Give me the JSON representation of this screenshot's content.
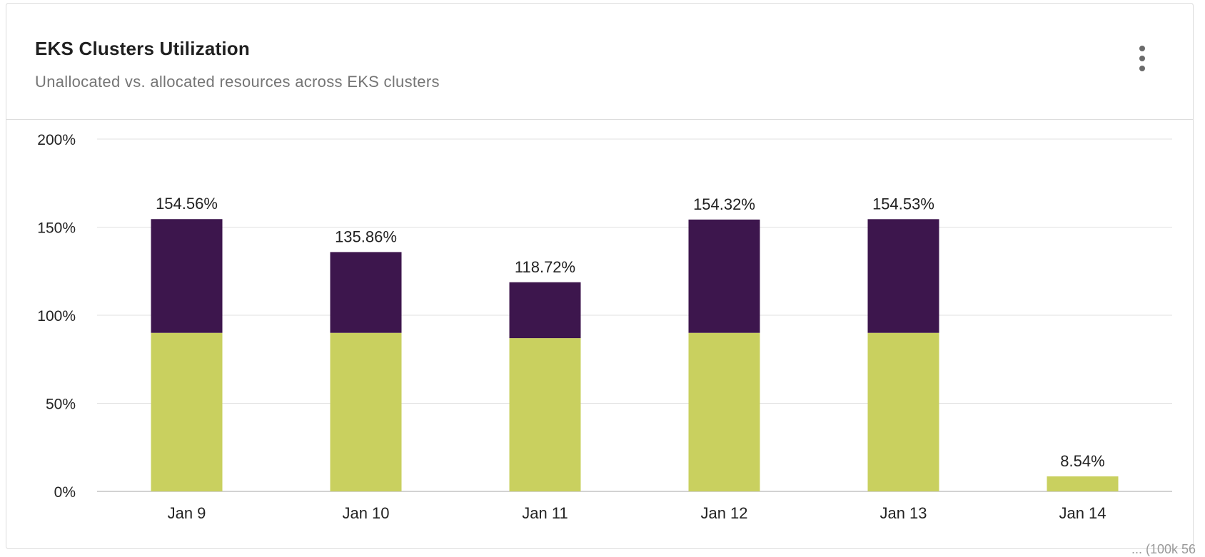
{
  "card": {
    "title": "EKS Clusters Utilization",
    "subtitle": "Unallocated vs. allocated resources across EKS clusters",
    "menu_icon": "more-vertical-icon"
  },
  "footer": {
    "note": "... (100k 56"
  },
  "colors": {
    "allocated": "#c9d05f",
    "unallocated": "#3d164d",
    "grid": "#e2e2e2",
    "axis": "#c4c4c4",
    "text": "#222222"
  },
  "chart_data": {
    "type": "bar",
    "stacked": true,
    "title": "EKS Clusters Utilization",
    "categories": [
      "Jan 9",
      "Jan 10",
      "Jan 11",
      "Jan 12",
      "Jan 13",
      "Jan 14"
    ],
    "series": [
      {
        "name": "Allocated",
        "color": "#c9d05f",
        "values": [
          90,
          90,
          87,
          90,
          90,
          8.54
        ]
      },
      {
        "name": "Unallocated",
        "color": "#3d164d",
        "values": [
          64.56,
          45.86,
          31.72,
          64.32,
          64.53,
          0
        ]
      }
    ],
    "totals": [
      154.56,
      135.86,
      118.72,
      154.32,
      154.53,
      8.54
    ],
    "total_labels": [
      "154.56%",
      "135.86%",
      "118.72%",
      "154.32%",
      "154.53%",
      "8.54%"
    ],
    "ylim": [
      0,
      200
    ],
    "yticks": [
      0,
      50,
      100,
      150,
      200
    ],
    "ytick_labels": [
      "0%",
      "50%",
      "100%",
      "150%",
      "200%"
    ],
    "grid": true,
    "legend": "none"
  }
}
